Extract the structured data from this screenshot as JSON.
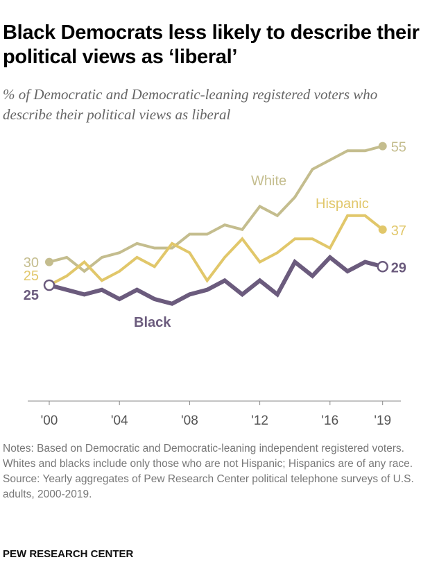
{
  "title": "Black Democrats less likely to describe their political views as ‘liberal’",
  "subtitle": "% of Democratic and Democratic-leaning registered voters who describe their political views as liberal",
  "chart_data": {
    "type": "line",
    "x": [
      2000,
      2001,
      2002,
      2003,
      2004,
      2005,
      2006,
      2007,
      2008,
      2009,
      2010,
      2011,
      2012,
      2013,
      2014,
      2015,
      2016,
      2017,
      2018,
      2019
    ],
    "xticks": [
      2000,
      2004,
      2008,
      2012,
      2016,
      2019
    ],
    "xtick_labels": [
      "'00",
      "'04",
      "'08",
      "'12",
      "'16",
      "'19"
    ],
    "ylim": [
      0,
      55
    ],
    "grid": false,
    "series": [
      {
        "name": "White",
        "color": "#c4bd8e",
        "start_label": "30",
        "end_label": "55",
        "values": [
          30,
          31,
          28,
          31,
          32,
          34,
          33,
          33,
          36,
          36,
          38,
          37,
          42,
          40,
          44,
          50,
          52,
          54,
          54,
          55
        ]
      },
      {
        "name": "Hispanic",
        "color": "#e1c76a",
        "start_label": "25",
        "end_label": "37",
        "values": [
          25,
          27,
          30,
          26,
          28,
          31,
          29,
          34,
          32,
          26,
          31,
          35,
          30,
          32,
          35,
          35,
          33,
          40,
          40,
          37
        ]
      },
      {
        "name": "Black",
        "color": "#6b5b7d",
        "start_label": "25",
        "end_label": "29",
        "values": [
          25,
          24,
          23,
          24,
          22,
          24,
          22,
          21,
          23,
          24,
          26,
          23,
          26,
          23,
          30,
          27,
          31,
          28,
          30,
          29
        ]
      }
    ]
  },
  "notes": "Notes: Based on Democratic and Democratic-leaning independent registered voters. Whites and blacks include only those who are not Hispanic; Hispanics are of any race.",
  "source": "Source: Yearly aggregates of Pew Research Center political telephone surveys of U.S. adults, 2000-2019.",
  "brand": "PEW RESEARCH CENTER"
}
